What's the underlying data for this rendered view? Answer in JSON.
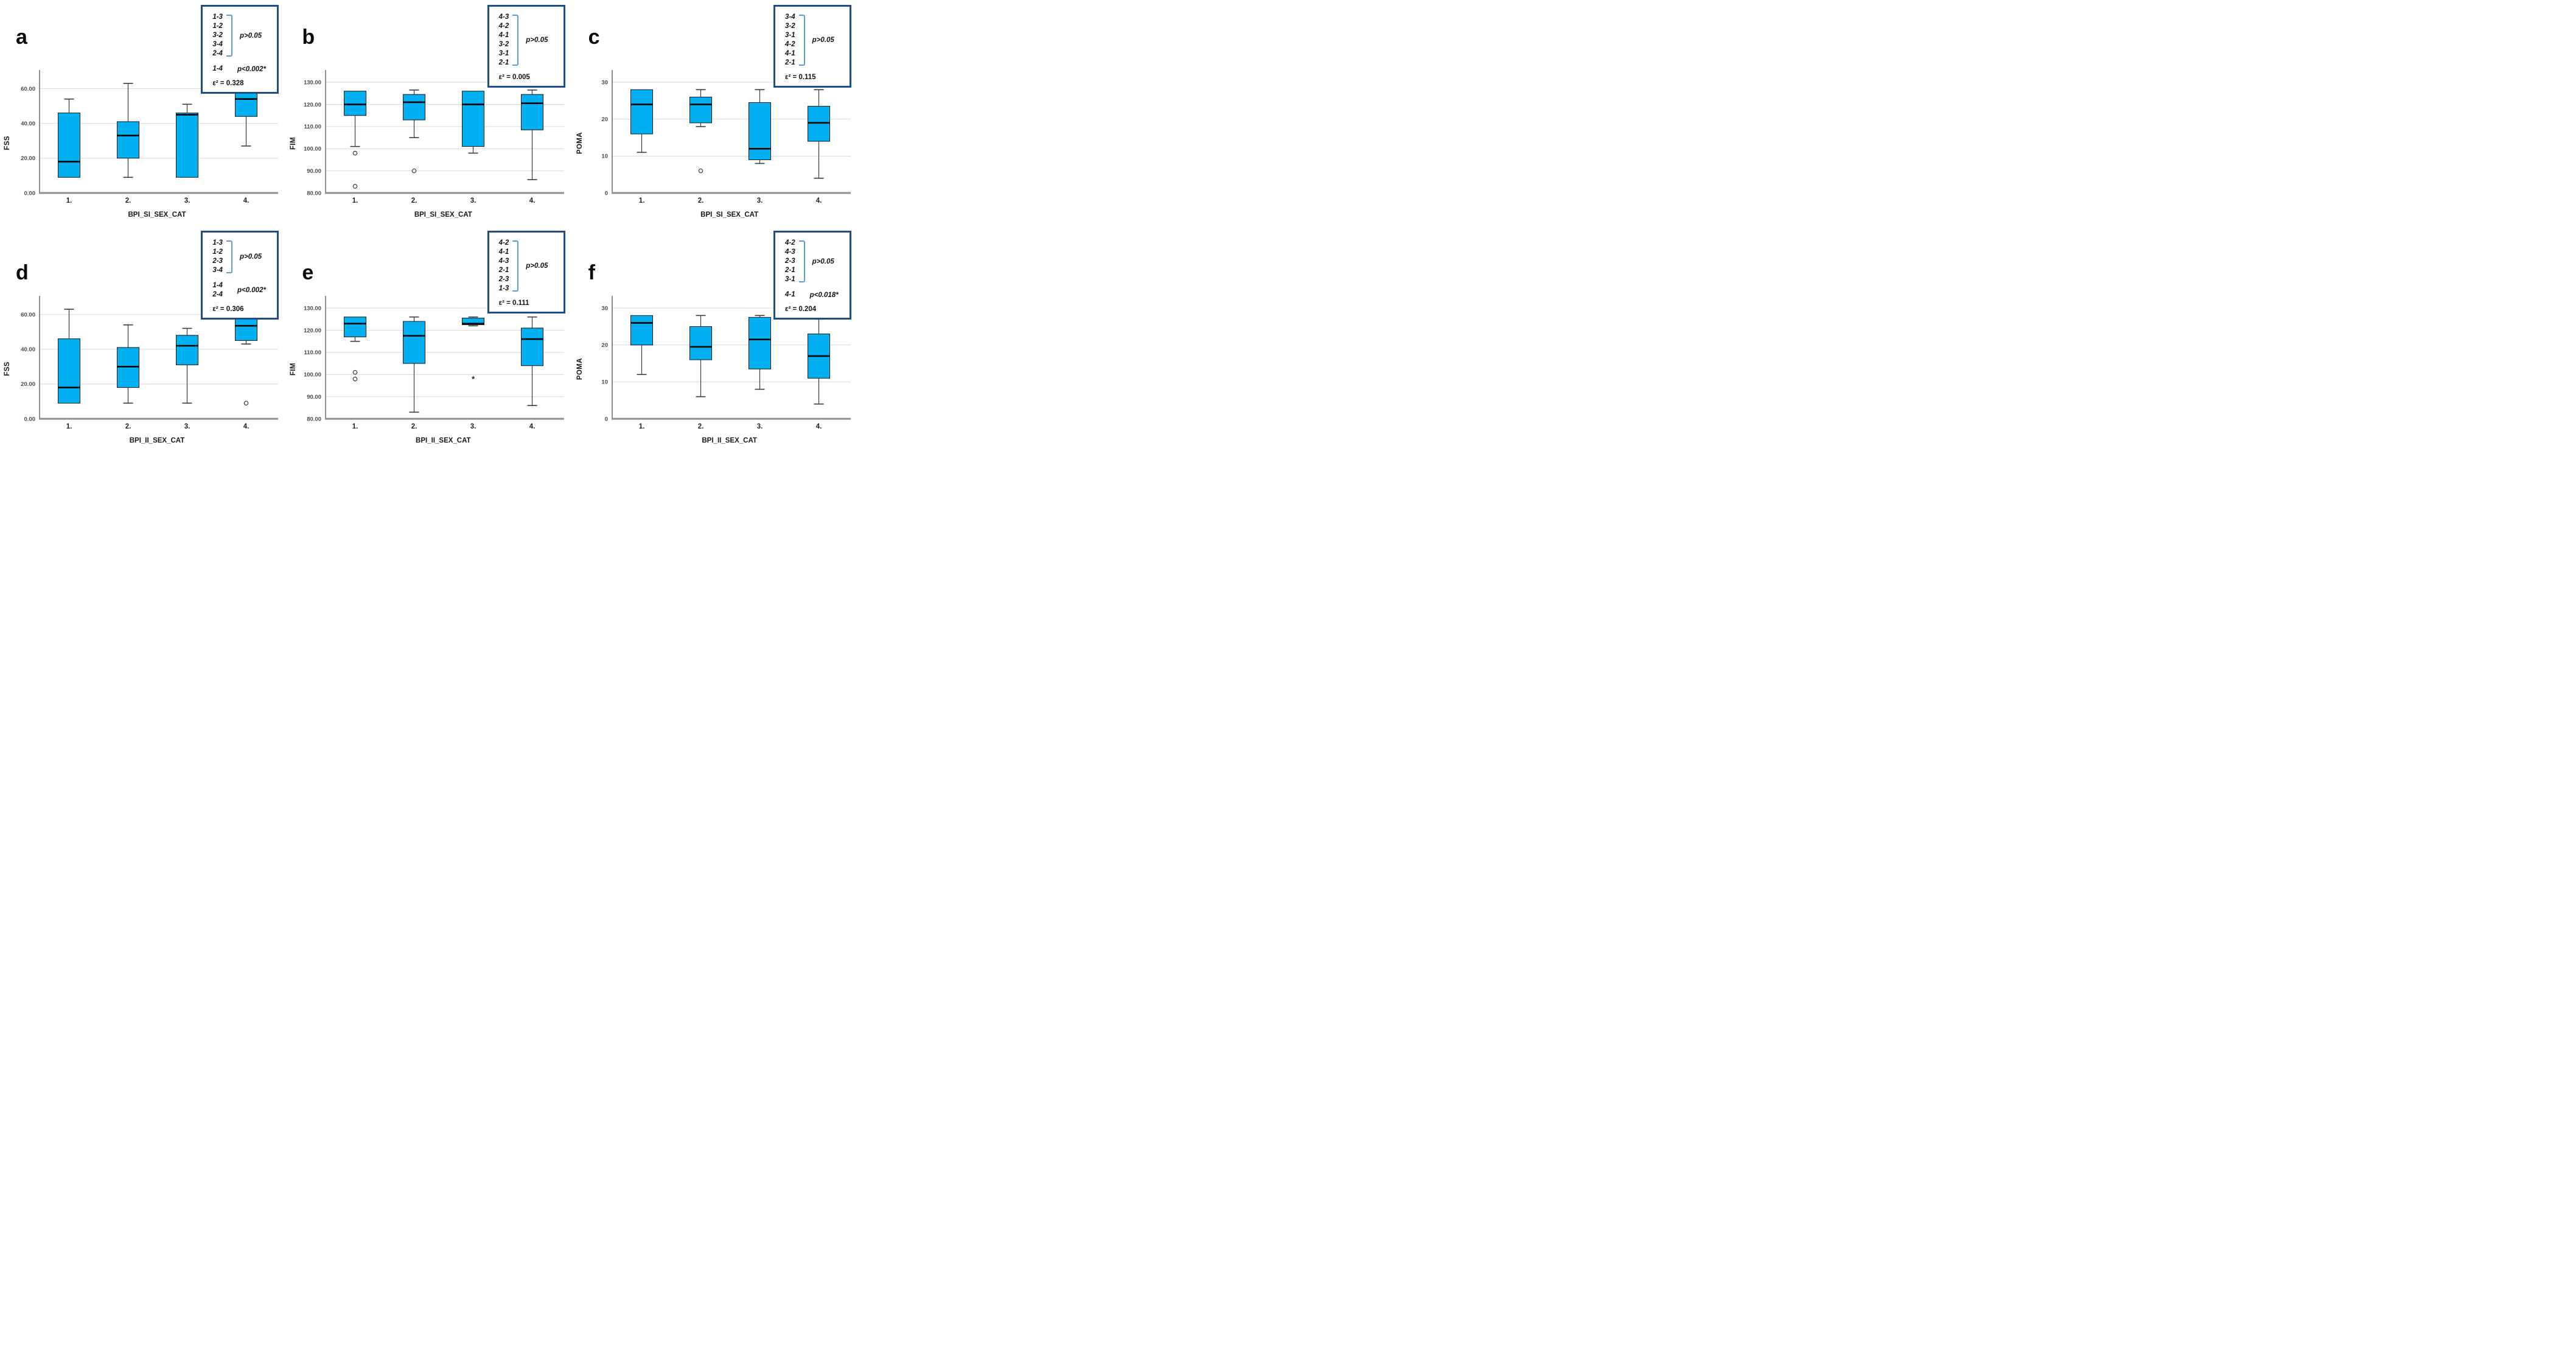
{
  "colors": {
    "box_fill": "#00b0f0",
    "box_stroke": "#1a1a1a",
    "median": "#000000",
    "legend_border": "#1d4e89",
    "bracket": "#5b9bd5",
    "gridline": "#d8d8d8",
    "axis": "#737373",
    "x_axis": "#8f8f8f",
    "whisker": "#3a3a3a",
    "tick_text": "#4a4a4a"
  },
  "chart_data": [
    {
      "panel": "a",
      "type": "box",
      "xlabel": "BPI_SI_SEX_CAT",
      "ylabel": "FSS",
      "categories": [
        "1.",
        "2.",
        "3.",
        "4."
      ],
      "ylim": [
        0,
        70
      ],
      "grid": true,
      "ytick_values": [
        0,
        20,
        40,
        60
      ],
      "ytick_labels": [
        "0.00",
        "20.00",
        "40.00",
        "60.00"
      ],
      "legend": {
        "groups": [
          {
            "pairs": [
              "1-3",
              "1-2",
              "3-2",
              "3-4",
              "2-4"
            ],
            "bracket": true,
            "p": "p>0.05"
          },
          {
            "pairs": [
              "1-4"
            ],
            "bracket": false,
            "p": "p<0.002*"
          }
        ],
        "epsilon": "ε² = 0.328"
      },
      "boxes": [
        {
          "category": "1.",
          "low": 9,
          "q1": 9,
          "median": 18,
          "q3": 46,
          "high": 54,
          "outliers": []
        },
        {
          "category": "2.",
          "low": 9,
          "q1": 20,
          "median": 33,
          "q3": 41,
          "high": 63,
          "outliers": []
        },
        {
          "category": "3.",
          "low": 9,
          "q1": 9,
          "median": 45,
          "q3": 46,
          "high": 51,
          "outliers": []
        },
        {
          "category": "4.",
          "low": 27,
          "q1": 44,
          "median": 54,
          "q3": 60,
          "high": 63,
          "outliers": []
        }
      ]
    },
    {
      "panel": "b",
      "type": "box",
      "xlabel": "BPI_SI_SEX_CAT",
      "ylabel": "FIM",
      "categories": [
        "1.",
        "2.",
        "3.",
        "4."
      ],
      "ylim": [
        80,
        135
      ],
      "grid": true,
      "ytick_values": [
        80,
        90,
        100,
        110,
        120,
        130
      ],
      "ytick_labels": [
        "80.00",
        "90.00",
        "100.00",
        "110.00",
        "120.00",
        "130.00"
      ],
      "legend": {
        "groups": [
          {
            "pairs": [
              "4-3",
              "4-2",
              "4-1",
              "3-2",
              "3-1",
              "2-1"
            ],
            "bracket": true,
            "p": "p>0.05"
          }
        ],
        "epsilon": "ε² = 0.005"
      },
      "boxes": [
        {
          "category": "1.",
          "low": 101,
          "q1": 115,
          "median": 120,
          "q3": 126,
          "high": 126,
          "outliers": [
            {
              "value": 98,
              "symbol": "circle"
            },
            {
              "value": 83,
              "symbol": "circle"
            }
          ]
        },
        {
          "category": "2.",
          "low": 105,
          "q1": 113,
          "median": 121,
          "q3": 124.5,
          "high": 126.5,
          "outliers": [
            {
              "value": 90,
              "symbol": "circle"
            }
          ]
        },
        {
          "category": "3.",
          "low": 98,
          "q1": 101,
          "median": 120,
          "q3": 126,
          "high": 126,
          "outliers": []
        },
        {
          "category": "4.",
          "low": 86,
          "q1": 108.5,
          "median": 120.5,
          "q3": 124.5,
          "high": 126.5,
          "outliers": []
        }
      ]
    },
    {
      "panel": "c",
      "type": "box",
      "xlabel": "BPI_SI_SEX_CAT",
      "ylabel": "POMA",
      "categories": [
        "1.",
        "2.",
        "3.",
        "4."
      ],
      "ylim": [
        0,
        33
      ],
      "grid": true,
      "ytick_values": [
        0,
        10,
        20,
        30
      ],
      "ytick_labels": [
        "0",
        "10",
        "20",
        "30"
      ],
      "legend": {
        "groups": [
          {
            "pairs": [
              "3-4",
              "3-2",
              "3-1",
              "4-2",
              "4-1",
              "2-1"
            ],
            "bracket": true,
            "p": "p>0.05"
          }
        ],
        "epsilon": "ε² = 0.115"
      },
      "boxes": [
        {
          "category": "1.",
          "low": 11,
          "q1": 16,
          "median": 24,
          "q3": 28,
          "high": 28,
          "outliers": []
        },
        {
          "category": "2.",
          "low": 18,
          "q1": 19,
          "median": 24,
          "q3": 26,
          "high": 28,
          "outliers": [
            {
              "value": 6,
              "symbol": "circle"
            }
          ]
        },
        {
          "category": "3.",
          "low": 8,
          "q1": 9,
          "median": 12,
          "q3": 24.5,
          "high": 28,
          "outliers": []
        },
        {
          "category": "4.",
          "low": 4,
          "q1": 14,
          "median": 19,
          "q3": 23.5,
          "high": 28,
          "outliers": []
        }
      ]
    },
    {
      "panel": "d",
      "type": "box",
      "xlabel": "BPI_II_SEX_CAT",
      "ylabel": "FSS",
      "categories": [
        "1.",
        "2.",
        "3.",
        "4."
      ],
      "ylim": [
        0,
        70
      ],
      "grid": true,
      "ytick_values": [
        0,
        20,
        40,
        60
      ],
      "ytick_labels": [
        "0.00",
        "20.00",
        "40.00",
        "60.00"
      ],
      "legend": {
        "groups": [
          {
            "pairs": [
              "1-3",
              "1-2",
              "2-3",
              "3-4"
            ],
            "bracket": true,
            "p": "p>0.05"
          },
          {
            "pairs": [
              "1-4",
              "2-4"
            ],
            "bracket": false,
            "p": "p<0.002*"
          }
        ],
        "epsilon": "ε² = 0.306"
      },
      "boxes": [
        {
          "category": "1.",
          "low": 9,
          "q1": 9,
          "median": 18,
          "q3": 46,
          "high": 63,
          "outliers": []
        },
        {
          "category": "2.",
          "low": 9,
          "q1": 18,
          "median": 30,
          "q3": 41,
          "high": 54,
          "outliers": []
        },
        {
          "category": "3.",
          "low": 9,
          "q1": 31,
          "median": 42,
          "q3": 48,
          "high": 52,
          "outliers": []
        },
        {
          "category": "4.",
          "low": 43,
          "q1": 45,
          "median": 53.5,
          "q3": 63,
          "high": 63,
          "outliers": [
            {
              "value": 9,
              "symbol": "circle"
            }
          ]
        }
      ]
    },
    {
      "panel": "e",
      "type": "box",
      "xlabel": "BPI_II_SEX_CAT",
      "ylabel": "FIM",
      "categories": [
        "1.",
        "2.",
        "3.",
        "4."
      ],
      "ylim": [
        80,
        135
      ],
      "grid": true,
      "ytick_values": [
        80,
        90,
        100,
        110,
        120,
        130
      ],
      "ytick_labels": [
        "80.00",
        "90.00",
        "100.00",
        "110.00",
        "120.00",
        "130.00"
      ],
      "legend": {
        "groups": [
          {
            "pairs": [
              "4-2",
              "4-1",
              "4-3",
              "2-1",
              "2-3",
              "1-3"
            ],
            "bracket": true,
            "p": "p>0.05"
          }
        ],
        "epsilon": "ε² = 0.111"
      },
      "boxes": [
        {
          "category": "1.",
          "low": 115,
          "q1": 117,
          "median": 123,
          "q3": 126,
          "high": 126,
          "outliers": [
            {
              "value": 101,
              "symbol": "circle"
            },
            {
              "value": 98,
              "symbol": "circle"
            }
          ]
        },
        {
          "category": "2.",
          "low": 83,
          "q1": 105,
          "median": 117.5,
          "q3": 124,
          "high": 126,
          "outliers": []
        },
        {
          "category": "3.",
          "low": 122,
          "q1": 122.5,
          "median": 123,
          "q3": 125.5,
          "high": 126,
          "outliers": [
            {
              "value": 98,
              "symbol": "star"
            }
          ]
        },
        {
          "category": "4.",
          "low": 86,
          "q1": 104,
          "median": 116,
          "q3": 121,
          "high": 126,
          "outliers": []
        }
      ]
    },
    {
      "panel": "f",
      "type": "box",
      "xlabel": "BPI_II_SEX_CAT",
      "ylabel": "POMA",
      "categories": [
        "1.",
        "2.",
        "3.",
        "4."
      ],
      "ylim": [
        0,
        33
      ],
      "grid": true,
      "ytick_values": [
        0,
        10,
        20,
        30
      ],
      "ytick_labels": [
        "0",
        "10",
        "20",
        "30"
      ],
      "legend": {
        "groups": [
          {
            "pairs": [
              "4-2",
              "4-3",
              "2-3",
              "2-1",
              "3-1"
            ],
            "bracket": true,
            "p": "p>0.05"
          },
          {
            "pairs": [
              "4-1"
            ],
            "bracket": false,
            "p": "p<0.018*"
          }
        ],
        "epsilon": "ε² = 0.204"
      },
      "boxes": [
        {
          "category": "1.",
          "low": 12,
          "q1": 20,
          "median": 26,
          "q3": 28,
          "high": 28,
          "outliers": []
        },
        {
          "category": "2.",
          "low": 6,
          "q1": 16,
          "median": 19.5,
          "q3": 25,
          "high": 28,
          "outliers": []
        },
        {
          "category": "3.",
          "low": 8,
          "q1": 13.5,
          "median": 21.5,
          "q3": 27.5,
          "high": 28,
          "outliers": []
        },
        {
          "category": "4.",
          "low": 4,
          "q1": 11,
          "median": 17,
          "q3": 23,
          "high": 27,
          "outliers": []
        }
      ]
    }
  ]
}
